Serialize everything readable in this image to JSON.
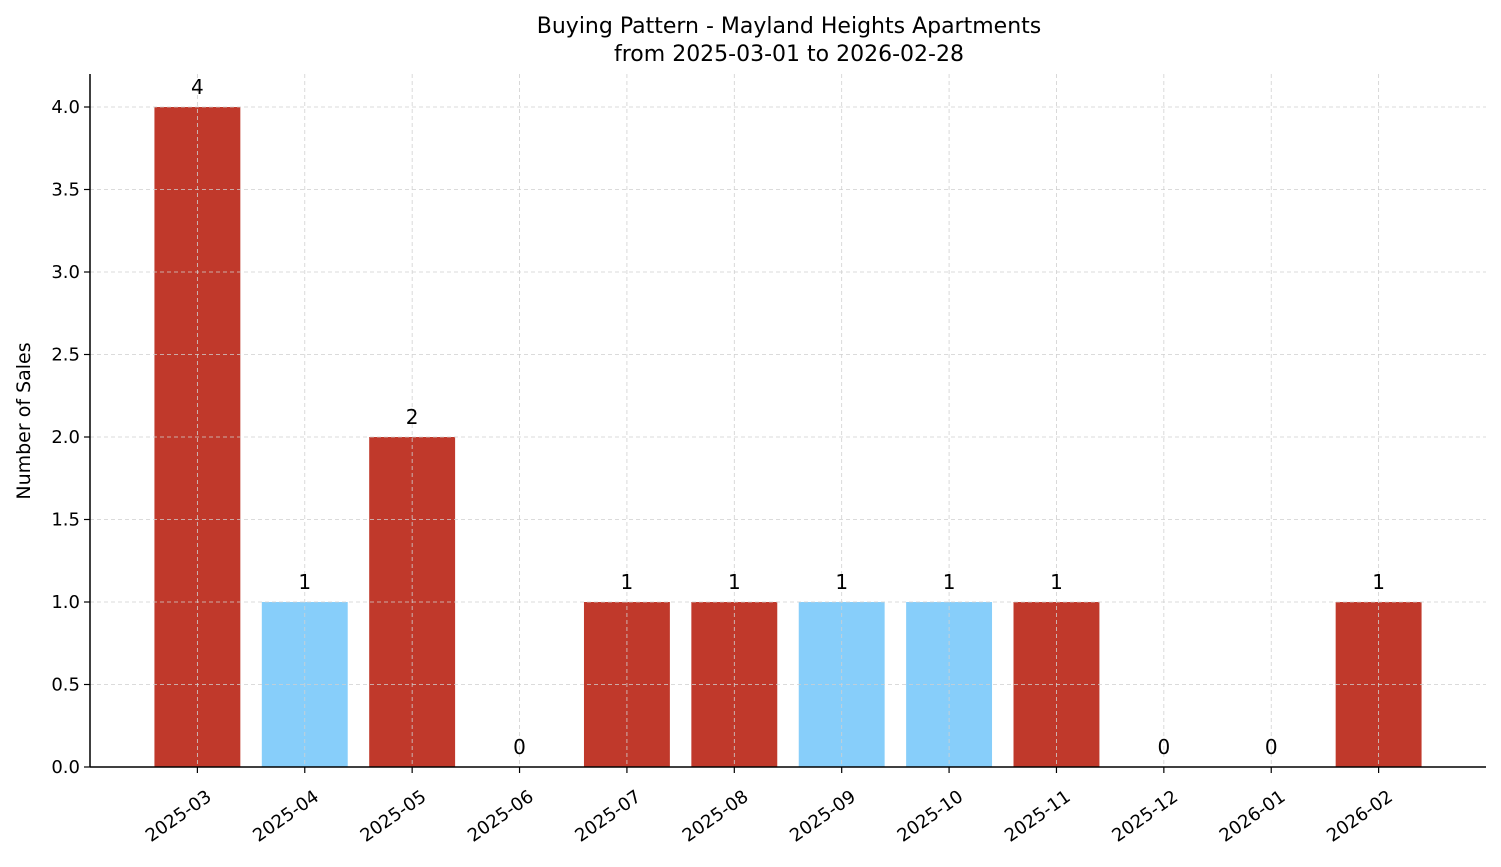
{
  "chart_data": {
    "type": "bar",
    "title": "Buying Pattern - Mayland Heights Apartments",
    "subtitle": "from 2025-03-01 to 2026-02-28",
    "xlabel": "",
    "ylabel": "Number of Sales",
    "categories": [
      "2025-03",
      "2025-04",
      "2025-05",
      "2025-06",
      "2025-07",
      "2025-08",
      "2025-09",
      "2025-10",
      "2025-11",
      "2025-12",
      "2026-01",
      "2026-02"
    ],
    "values": [
      4,
      1,
      2,
      0,
      1,
      1,
      1,
      1,
      1,
      0,
      0,
      1
    ],
    "bar_colors": [
      "#c0392b",
      "#87cefa",
      "#c0392b",
      "#c0392b",
      "#c0392b",
      "#c0392b",
      "#87cefa",
      "#87cefa",
      "#c0392b",
      "#c0392b",
      "#c0392b",
      "#c0392b"
    ],
    "data_labels": [
      "4",
      "1",
      "2",
      "0",
      "1",
      "1",
      "1",
      "1",
      "1",
      "0",
      "0",
      "1"
    ],
    "ylim": [
      0,
      4.2
    ],
    "yticks": [
      "0.0",
      "0.5",
      "1.0",
      "1.5",
      "2.0",
      "2.5",
      "3.0",
      "3.5",
      "4.0"
    ],
    "grid": true,
    "legend": "none"
  }
}
